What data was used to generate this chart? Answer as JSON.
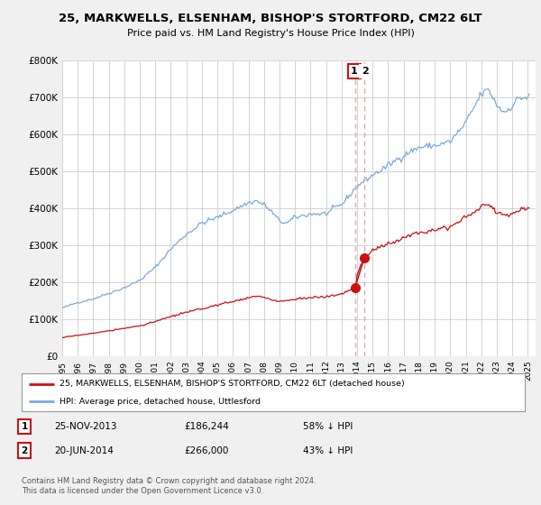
{
  "title": "25, MARKWELLS, ELSENHAM, BISHOP'S STORTFORD, CM22 6LT",
  "subtitle": "Price paid vs. HM Land Registry's House Price Index (HPI)",
  "hpi_label": "HPI: Average price, detached house, Uttlesford",
  "price_label": "25, MARKWELLS, ELSENHAM, BISHOP'S STORTFORD, CM22 6LT (detached house)",
  "hpi_color": "#7aaadd",
  "price_color": "#cc1111",
  "annotation1": {
    "n": "1",
    "date": "25-NOV-2013",
    "price": "£186,244",
    "pct": "58% ↓ HPI"
  },
  "annotation2": {
    "n": "2",
    "date": "20-JUN-2014",
    "price": "£266,000",
    "pct": "43% ↓ HPI"
  },
  "vline_color": "#cc1111",
  "vline_dash_color": "#ddaaaa",
  "x1_year": 2013.875,
  "x2_year": 2014.458,
  "y1_price": 186244,
  "y2_price": 266000,
  "ylim": [
    0,
    800000
  ],
  "xlim_start": 1995,
  "xlim_end": 2025.5,
  "yticks": [
    0,
    100000,
    200000,
    300000,
    400000,
    500000,
    600000,
    700000,
    800000
  ],
  "ytick_labels": [
    "£0",
    "£100K",
    "£200K",
    "£300K",
    "£400K",
    "£500K",
    "£600K",
    "£700K",
    "£800K"
  ],
  "bg_color": "#f0f0f0",
  "plot_bg_color": "#ffffff",
  "grid_color": "#cccccc",
  "footer": "Contains HM Land Registry data © Crown copyright and database right 2024.\nThis data is licensed under the Open Government Licence v3.0."
}
